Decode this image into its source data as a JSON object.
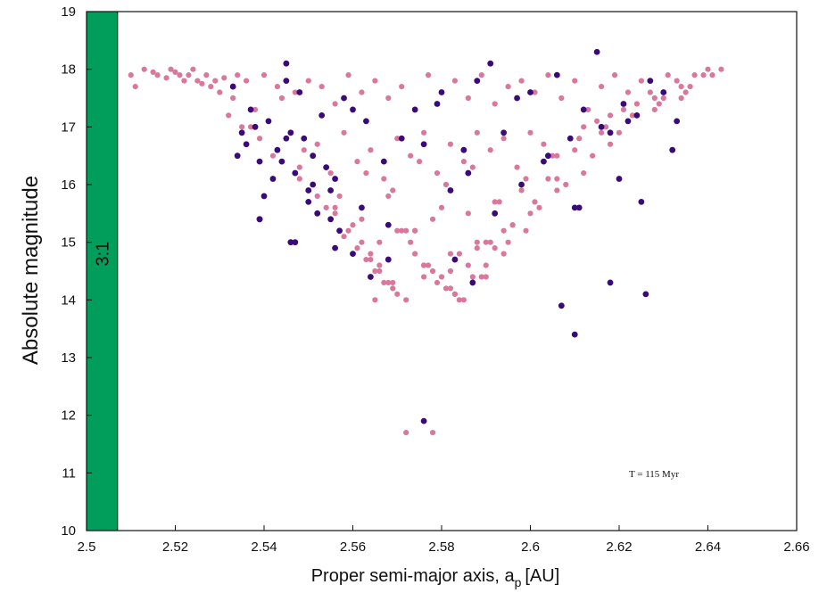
{
  "chart_data": {
    "type": "scatter",
    "title": "",
    "xlabel": "Proper semi-major axis, a",
    "xlabel_sub": "p",
    "xlabel_unit": "[AU]",
    "ylabel": "Absolute magnitude",
    "xlim": [
      2.5,
      2.66
    ],
    "ylim": [
      10,
      19
    ],
    "x_ticks": [
      2.5,
      2.52,
      2.54,
      2.56,
      2.58,
      2.6,
      2.62,
      2.64,
      2.66
    ],
    "x_tick_labels": [
      "2.5",
      "2.52",
      "2.54",
      "2.56",
      "2.58",
      "2.6",
      "2.62",
      "2.64",
      "2.66"
    ],
    "y_ticks": [
      10,
      11,
      12,
      13,
      14,
      15,
      16,
      17,
      18,
      19
    ],
    "y_tick_labels": [
      "10",
      "11",
      "12",
      "13",
      "14",
      "15",
      "16",
      "17",
      "18",
      "19"
    ],
    "grid": false,
    "annotation": "T = 115 Myr",
    "resonance_band": {
      "label": "3:1",
      "x_range": [
        2.5,
        2.507
      ],
      "color": "#009e5a"
    },
    "series": [
      {
        "color": "#d9779d",
        "x": [
          2.51,
          2.511,
          2.513,
          2.516,
          2.519,
          2.522,
          2.524,
          2.527,
          2.529,
          2.515,
          2.518,
          2.521,
          2.525,
          2.528,
          2.531,
          2.534,
          2.52,
          2.523,
          2.526,
          2.53,
          2.533,
          2.536,
          2.54,
          2.543,
          2.538,
          2.541,
          2.544,
          2.547,
          2.55,
          2.553,
          2.556,
          2.559,
          2.562,
          2.565,
          2.568,
          2.571,
          2.574,
          2.577,
          2.58,
          2.583,
          2.586,
          2.589,
          2.592,
          2.595,
          2.598,
          2.601,
          2.604,
          2.607,
          2.61,
          2.613,
          2.616,
          2.619,
          2.622,
          2.625,
          2.628,
          2.631,
          2.634,
          2.637,
          2.64,
          2.643,
          2.535,
          2.539,
          2.546,
          2.549,
          2.552,
          2.555,
          2.558,
          2.561,
          2.564,
          2.567,
          2.57,
          2.573,
          2.576,
          2.579,
          2.582,
          2.585,
          2.588,
          2.591,
          2.594,
          2.597,
          2.6,
          2.603,
          2.606,
          2.609,
          2.612,
          2.615,
          2.618,
          2.621,
          2.624,
          2.627,
          2.63,
          2.633,
          2.636,
          2.639,
          2.532,
          2.537,
          2.542,
          2.548,
          2.551,
          2.557,
          2.563,
          2.569,
          2.575,
          2.581,
          2.587,
          2.593,
          2.599,
          2.605,
          2.611,
          2.617,
          2.623,
          2.629,
          2.635,
          2.641,
          2.544,
          2.55,
          2.556,
          2.562,
          2.568,
          2.574,
          2.58,
          2.586,
          2.592,
          2.598,
          2.604,
          2.61,
          2.616,
          2.622,
          2.628,
          2.634,
          2.548,
          2.554,
          2.56,
          2.566,
          2.572,
          2.578,
          2.584,
          2.59,
          2.596,
          2.602,
          2.608,
          2.614,
          2.62,
          2.552,
          2.558,
          2.564,
          2.57,
          2.576,
          2.582,
          2.588,
          2.594,
          2.6,
          2.606,
          2.612,
          2.618,
          2.556,
          2.561,
          2.566,
          2.571,
          2.576,
          2.581,
          2.586,
          2.591,
          2.596,
          2.601,
          2.606,
          2.559,
          2.563,
          2.567,
          2.573,
          2.578,
          2.583,
          2.589,
          2.594,
          2.599,
          2.562,
          2.565,
          2.569,
          2.574,
          2.579,
          2.584,
          2.59,
          2.595,
          2.564,
          2.568,
          2.572,
          2.577,
          2.582,
          2.587,
          2.592,
          2.566,
          2.57,
          2.574,
          2.58,
          2.585,
          2.59,
          2.565,
          2.569,
          2.576,
          2.582,
          2.588,
          2.572,
          2.578,
          2.583
        ],
        "y": [
          17.9,
          17.7,
          18.0,
          17.9,
          18.0,
          17.8,
          18.0,
          17.9,
          17.8,
          17.95,
          17.85,
          17.9,
          17.8,
          17.7,
          17.85,
          17.9,
          17.95,
          17.9,
          17.75,
          17.6,
          17.5,
          17.8,
          17.9,
          17.7,
          17.3,
          17.1,
          17.5,
          17.6,
          17.8,
          17.7,
          17.4,
          17.9,
          17.6,
          17.8,
          17.5,
          17.7,
          17.3,
          17.9,
          17.6,
          17.8,
          17.5,
          17.9,
          17.4,
          17.7,
          17.8,
          17.6,
          17.9,
          17.5,
          17.8,
          17.3,
          17.7,
          17.9,
          17.6,
          17.8,
          17.5,
          17.9,
          17.7,
          17.9,
          18.0,
          18.0,
          17.0,
          16.8,
          16.9,
          16.6,
          16.7,
          16.2,
          16.9,
          16.4,
          16.6,
          16.1,
          16.8,
          16.5,
          16.9,
          16.2,
          16.7,
          16.4,
          16.9,
          16.6,
          16.8,
          16.3,
          16.9,
          16.7,
          16.5,
          16.8,
          17.0,
          17.1,
          17.2,
          17.3,
          17.4,
          17.6,
          17.5,
          17.8,
          17.7,
          17.9,
          17.2,
          17.0,
          16.5,
          16.3,
          16.0,
          15.8,
          16.2,
          15.9,
          16.4,
          16.0,
          16.3,
          15.7,
          16.1,
          16.5,
          16.8,
          17.0,
          17.2,
          17.4,
          17.6,
          17.9,
          16.4,
          15.9,
          15.6,
          15.4,
          15.8,
          15.2,
          15.6,
          15.5,
          15.7,
          15.9,
          16.1,
          16.6,
          16.9,
          17.1,
          17.3,
          17.5,
          16.1,
          15.6,
          15.3,
          15.0,
          15.2,
          15.4,
          14.8,
          15.0,
          15.3,
          15.6,
          16.0,
          16.5,
          16.9,
          15.8,
          15.1,
          14.8,
          15.2,
          14.6,
          14.5,
          14.9,
          15.2,
          15.5,
          15.9,
          16.2,
          16.7,
          15.5,
          14.9,
          14.6,
          15.2,
          14.4,
          14.2,
          14.6,
          15.0,
          15.3,
          15.7,
          16.1,
          15.2,
          14.7,
          14.3,
          15.0,
          14.5,
          14.1,
          14.4,
          14.8,
          15.2,
          15.0,
          14.5,
          14.2,
          14.8,
          14.3,
          14.0,
          14.6,
          15.0,
          14.7,
          14.3,
          14.0,
          14.6,
          14.2,
          14.4,
          14.9,
          14.5,
          14.1,
          15.2,
          14.4,
          14.0,
          14.4,
          14.0,
          14.3,
          14.6,
          14.8,
          15.0,
          11.7,
          11.7,
          14.1
        ]
      },
      {
        "color": "#3a0a7a",
        "x": [
          2.533,
          2.535,
          2.537,
          2.539,
          2.541,
          2.543,
          2.545,
          2.547,
          2.549,
          2.551,
          2.553,
          2.555,
          2.534,
          2.538,
          2.542,
          2.546,
          2.55,
          2.554,
          2.558,
          2.536,
          2.54,
          2.544,
          2.548,
          2.552,
          2.556,
          2.56,
          2.539,
          2.545,
          2.551,
          2.557,
          2.563,
          2.567,
          2.545,
          2.55,
          2.556,
          2.562,
          2.568,
          2.576,
          2.579,
          2.582,
          2.585,
          2.588,
          2.591,
          2.594,
          2.597,
          2.6,
          2.603,
          2.606,
          2.609,
          2.612,
          2.615,
          2.618,
          2.621,
          2.624,
          2.627,
          2.63,
          2.633,
          2.571,
          2.574,
          2.58,
          2.586,
          2.592,
          2.598,
          2.604,
          2.61,
          2.616,
          2.622,
          2.546,
          2.555,
          2.56,
          2.564,
          2.568,
          2.583,
          2.587,
          2.607,
          2.61,
          2.618,
          2.626,
          2.539,
          2.547,
          2.576,
          2.611,
          2.62,
          2.625,
          2.632
        ],
        "y": [
          17.7,
          16.9,
          17.3,
          16.4,
          17.1,
          16.6,
          17.8,
          16.2,
          16.8,
          16.0,
          17.2,
          15.9,
          16.5,
          17.0,
          16.1,
          16.9,
          15.7,
          16.3,
          17.5,
          16.7,
          15.8,
          16.4,
          17.6,
          15.5,
          16.1,
          17.3,
          15.4,
          16.8,
          16.5,
          15.2,
          17.1,
          16.4,
          18.1,
          15.9,
          14.9,
          15.6,
          15.3,
          16.7,
          17.4,
          15.9,
          16.6,
          17.8,
          18.1,
          16.9,
          17.5,
          17.6,
          16.4,
          17.9,
          16.8,
          17.3,
          18.3,
          16.9,
          17.4,
          17.2,
          17.8,
          17.6,
          17.1,
          16.8,
          17.3,
          17.6,
          16.2,
          15.5,
          16.0,
          16.5,
          15.6,
          17.0,
          17.1,
          15.0,
          15.4,
          14.8,
          14.4,
          14.7,
          14.7,
          14.3,
          13.9,
          13.4,
          14.3,
          14.1,
          15.4,
          15.0,
          11.9,
          15.6,
          16.1,
          15.7,
          16.6
        ]
      }
    ]
  }
}
